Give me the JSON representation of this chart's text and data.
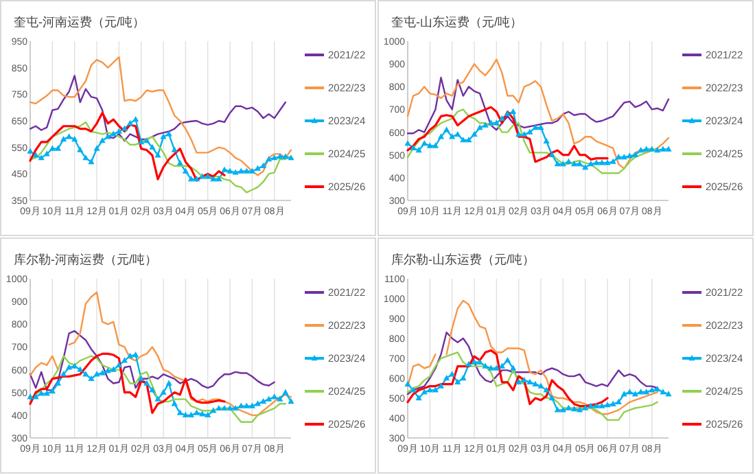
{
  "chart_data": [
    {
      "type": "line",
      "title": "奎屯-河南运费（元/吨）",
      "categories": [
        "09月",
        null,
        null,
        null,
        "10月",
        null,
        null,
        null,
        "11月",
        null,
        null,
        null,
        "12月",
        null,
        null,
        null,
        "01月",
        null,
        null,
        null,
        "02月",
        null,
        null,
        null,
        "03月",
        null,
        null,
        null,
        "04月",
        null,
        null,
        null,
        "05月",
        null,
        null,
        null,
        "06月",
        null,
        null,
        null,
        "07月",
        null,
        null,
        null,
        "08月",
        null,
        null,
        null
      ],
      "ylim": [
        350,
        950
      ],
      "yticks": [
        350,
        450,
        550,
        650,
        750,
        850,
        950
      ],
      "grid": "x",
      "legend": "right",
      "series": [
        {
          "name": "2021/22",
          "color": "#7030a0",
          "values": [
            620,
            630,
            615,
            625,
            690,
            695,
            730,
            760,
            820,
            720,
            770,
            740,
            735,
            690,
            590,
            585,
            600,
            575,
            600,
            590,
            580,
            580,
            590,
            600,
            605,
            610,
            620,
            640,
            645,
            648,
            650,
            640,
            635,
            640,
            650,
            645,
            680,
            705,
            705,
            695,
            700,
            685,
            660,
            675,
            660,
            690,
            720,
            null
          ]
        },
        {
          "name": "2022/23",
          "color": "#f79646",
          "values": [
            720,
            715,
            730,
            745,
            765,
            765,
            745,
            740,
            740,
            770,
            800,
            860,
            880,
            870,
            850,
            870,
            890,
            725,
            730,
            725,
            740,
            765,
            760,
            765,
            765,
            720,
            670,
            650,
            620,
            580,
            530,
            530,
            530,
            540,
            550,
            545,
            530,
            510,
            500,
            480,
            460,
            445,
            460,
            510,
            525,
            525,
            510,
            540
          ]
        },
        {
          "name": "2023/24",
          "color": "#00b0f0",
          "marker": "triangle",
          "values": [
            535,
            520,
            510,
            525,
            545,
            545,
            580,
            590,
            580,
            540,
            510,
            495,
            545,
            575,
            590,
            600,
            610,
            620,
            640,
            655,
            570,
            575,
            550,
            520,
            590,
            600,
            540,
            490,
            460,
            430,
            430,
            440,
            440,
            430,
            430,
            465,
            460,
            455,
            460,
            460,
            460,
            470,
            480,
            505,
            510,
            515,
            515,
            510
          ]
        },
        {
          "name": "2024/25",
          "color": "#92d050",
          "values": [
            505,
            510,
            530,
            560,
            590,
            600,
            610,
            620,
            625,
            630,
            645,
            610,
            605,
            600,
            605,
            600,
            590,
            580,
            560,
            560,
            570,
            580,
            590,
            560,
            530,
            490,
            480,
            480,
            480,
            475,
            460,
            440,
            440,
            440,
            440,
            430,
            425,
            405,
            400,
            380,
            390,
            400,
            420,
            450,
            455,
            505,
            505,
            null
          ]
        },
        {
          "name": "2025/26",
          "color": "#ff0000",
          "values": [
            500,
            540,
            570,
            570,
            590,
            610,
            630,
            630,
            630,
            620,
            620,
            610,
            640,
            680,
            640,
            655,
            630,
            610,
            635,
            630,
            545,
            540,
            520,
            430,
            475,
            505,
            525,
            545,
            495,
            470,
            425,
            440,
            450,
            440,
            460,
            445,
            null,
            null,
            null,
            null,
            null,
            null,
            null,
            null,
            null,
            null,
            null,
            null
          ]
        }
      ]
    },
    {
      "type": "line",
      "title": "奎屯-山东运费（元/吨）",
      "categories": [
        "09月",
        null,
        null,
        null,
        "10月",
        null,
        null,
        null,
        "11月",
        null,
        null,
        null,
        "12月",
        null,
        null,
        null,
        "01月",
        null,
        null,
        null,
        "02月",
        null,
        null,
        null,
        "03月",
        null,
        null,
        null,
        "04月",
        null,
        null,
        null,
        "05月",
        null,
        null,
        null,
        "06月",
        null,
        null,
        null,
        "07月",
        null,
        null,
        null,
        "08月",
        null,
        null,
        null
      ],
      "ylim": [
        300,
        1000
      ],
      "yticks": [
        300,
        400,
        500,
        600,
        700,
        800,
        900,
        1000
      ],
      "grid": "x",
      "legend": "right",
      "series": [
        {
          "name": "2021/22",
          "color": "#7030a0",
          "values": [
            595,
            595,
            610,
            600,
            650,
            700,
            840,
            740,
            700,
            830,
            760,
            800,
            780,
            770,
            700,
            630,
            610,
            640,
            670,
            640,
            630,
            620,
            625,
            630,
            635,
            640,
            640,
            650,
            680,
            690,
            675,
            680,
            680,
            660,
            645,
            650,
            660,
            670,
            700,
            730,
            735,
            710,
            720,
            735,
            700,
            705,
            695,
            745
          ]
        },
        {
          "name": "2022/23",
          "color": "#f79646",
          "values": [
            670,
            760,
            770,
            800,
            770,
            765,
            750,
            770,
            760,
            810,
            820,
            860,
            900,
            870,
            850,
            880,
            920,
            860,
            760,
            760,
            730,
            800,
            810,
            825,
            800,
            720,
            650,
            660,
            680,
            640,
            550,
            560,
            580,
            580,
            560,
            550,
            540,
            530,
            460,
            440,
            480,
            510,
            520,
            510,
            520,
            530,
            550,
            575
          ]
        },
        {
          "name": "2023/24",
          "color": "#00b0f0",
          "marker": "triangle",
          "values": [
            550,
            530,
            520,
            550,
            540,
            540,
            580,
            610,
            580,
            590,
            565,
            565,
            590,
            620,
            630,
            640,
            640,
            660,
            680,
            690,
            590,
            590,
            600,
            620,
            620,
            560,
            500,
            460,
            460,
            470,
            460,
            460,
            445,
            460,
            465,
            465,
            465,
            470,
            490,
            490,
            495,
            500,
            520,
            525,
            525,
            520,
            525,
            525
          ]
        },
        {
          "name": "2024/25",
          "color": "#92d050",
          "values": [
            490,
            530,
            560,
            590,
            595,
            620,
            640,
            650,
            660,
            690,
            700,
            670,
            660,
            640,
            640,
            630,
            640,
            600,
            600,
            630,
            640,
            560,
            510,
            510,
            510,
            510,
            500,
            480,
            460,
            460,
            470,
            475,
            465,
            460,
            440,
            420,
            420,
            420,
            420,
            440,
            470,
            490,
            500,
            510,
            520,
            530,
            null,
            null
          ]
        },
        {
          "name": "2025/26",
          "color": "#ff0000",
          "values": [
            520,
            540,
            570,
            580,
            610,
            630,
            670,
            675,
            670,
            630,
            650,
            670,
            680,
            690,
            700,
            710,
            690,
            640,
            690,
            660,
            580,
            580,
            570,
            470,
            480,
            490,
            510,
            520,
            500,
            500,
            540,
            500,
            500,
            480,
            485,
            485,
            485,
            null,
            null,
            null,
            null,
            null,
            null,
            null,
            null,
            null,
            null,
            null
          ]
        }
      ]
    },
    {
      "type": "line",
      "title": "库尔勒-河南运费（元/吨）",
      "categories": [
        "09月",
        null,
        null,
        null,
        "10月",
        null,
        null,
        null,
        "11月",
        null,
        null,
        null,
        "12月",
        null,
        null,
        null,
        "01月",
        null,
        null,
        null,
        "02月",
        null,
        null,
        null,
        "03月",
        null,
        null,
        null,
        "04月",
        null,
        null,
        null,
        "05月",
        null,
        null,
        null,
        "06月",
        null,
        null,
        null,
        "07月",
        null,
        null,
        null,
        "08月",
        null,
        null,
        null
      ],
      "ylim": [
        300,
        1000
      ],
      "yticks": [
        300,
        400,
        500,
        600,
        700,
        800,
        900,
        1000
      ],
      "grid": "x",
      "legend": "right",
      "series": [
        {
          "name": "2021/22",
          "color": "#7030a0",
          "values": [
            580,
            520,
            590,
            510,
            510,
            550,
            650,
            760,
            770,
            750,
            730,
            690,
            660,
            620,
            560,
            540,
            545,
            610,
            615,
            520,
            560,
            560,
            570,
            560,
            580,
            570,
            560,
            540,
            550,
            560,
            550,
            530,
            520,
            530,
            560,
            580,
            580,
            590,
            585,
            585,
            570,
            550,
            535,
            530,
            545,
            null,
            null,
            null
          ]
        },
        {
          "name": "2022/23",
          "color": "#f79646",
          "values": [
            575,
            610,
            630,
            620,
            660,
            600,
            null,
            710,
            720,
            760,
            890,
            920,
            940,
            810,
            800,
            810,
            710,
            700,
            650,
            640,
            660,
            670,
            700,
            660,
            600,
            590,
            570,
            560,
            550,
            470,
            460,
            470,
            460,
            470,
            470,
            460,
            450,
            430,
            420,
            410,
            400,
            400,
            420,
            440,
            460,
            480,
            490,
            480
          ]
        },
        {
          "name": "2023/24",
          "color": "#00b0f0",
          "marker": "triangle",
          "values": [
            480,
            480,
            495,
            495,
            505,
            540,
            580,
            610,
            615,
            600,
            580,
            560,
            580,
            585,
            595,
            600,
            620,
            640,
            660,
            665,
            560,
            540,
            510,
            470,
            500,
            540,
            450,
            410,
            400,
            400,
            410,
            405,
            400,
            420,
            430,
            430,
            430,
            430,
            440,
            440,
            440,
            450,
            460,
            470,
            480,
            470,
            500,
            460
          ]
        },
        {
          "name": "2024/25",
          "color": "#92d050",
          "values": [
            470,
            490,
            510,
            540,
            560,
            600,
            660,
            630,
            620,
            640,
            650,
            660,
            650,
            620,
            610,
            600,
            600,
            580,
            540,
            540,
            580,
            590,
            530,
            470,
            460,
            460,
            470,
            470,
            470,
            440,
            430,
            420,
            420,
            420,
            430,
            430,
            430,
            400,
            370,
            370,
            370,
            400,
            410,
            420,
            430,
            450,
            450,
            null
          ]
        },
        {
          "name": "2025/26",
          "color": "#ff0000",
          "values": [
            450,
            500,
            515,
            515,
            560,
            565,
            570,
            570,
            575,
            580,
            610,
            640,
            660,
            670,
            670,
            665,
            650,
            500,
            500,
            480,
            550,
            540,
            410,
            450,
            460,
            480,
            500,
            490,
            560,
            480,
            460,
            455,
            455,
            460,
            465,
            460,
            null,
            null,
            null,
            null,
            null,
            null,
            null,
            null,
            null,
            null,
            null,
            null
          ]
        }
      ]
    },
    {
      "type": "line",
      "title": "库尔勒-山东运费（元/吨）",
      "categories": [
        "09月",
        null,
        null,
        null,
        "10月",
        null,
        null,
        null,
        "11月",
        null,
        null,
        null,
        "12月",
        null,
        null,
        null,
        "01月",
        null,
        null,
        null,
        "02月",
        null,
        null,
        null,
        "03月",
        null,
        null,
        null,
        "04月",
        null,
        null,
        null,
        "05月",
        null,
        null,
        null,
        "06月",
        null,
        null,
        null,
        "07月",
        null,
        null,
        null,
        "08月",
        null,
        null,
        null
      ],
      "ylim": [
        300,
        1100
      ],
      "yticks": [
        300,
        400,
        500,
        600,
        700,
        800,
        900,
        1000,
        1100
      ],
      "grid": "x",
      "legend": "right",
      "series": [
        {
          "name": "2021/22",
          "color": "#7030a0",
          "values": [
            520,
            540,
            550,
            560,
            600,
            650,
            720,
            830,
            800,
            780,
            800,
            760,
            680,
            620,
            590,
            580,
            610,
            640,
            640,
            630,
            630,
            630,
            630,
            630,
            620,
            640,
            650,
            640,
            620,
            610,
            610,
            620,
            580,
            570,
            560,
            570,
            560,
            600,
            640,
            610,
            620,
            610,
            580,
            560,
            560,
            550,
            null,
            null
          ]
        },
        {
          "name": "2022/23",
          "color": "#f79646",
          "values": [
            560,
            660,
            670,
            650,
            660,
            720,
            null,
            720,
            850,
            950,
            990,
            970,
            910,
            860,
            850,
            760,
            730,
            730,
            750,
            750,
            750,
            740,
            630,
            620,
            640,
            600,
            510,
            500,
            500,
            490,
            480,
            480,
            470,
            450,
            430,
            420,
            420,
            430,
            440,
            460,
            480,
            490,
            500,
            510,
            520,
            530,
            null,
            null
          ]
        },
        {
          "name": "2023/24",
          "color": "#00b0f0",
          "marker": "triangle",
          "values": [
            570,
            540,
            500,
            530,
            540,
            540,
            560,
            600,
            620,
            580,
            600,
            670,
            680,
            680,
            660,
            650,
            650,
            660,
            690,
            650,
            580,
            590,
            580,
            570,
            560,
            540,
            500,
            440,
            440,
            450,
            445,
            440,
            450,
            460,
            460,
            460,
            465,
            470,
            480,
            520,
            530,
            520,
            530,
            530,
            540,
            545,
            530,
            520
          ]
        },
        {
          "name": "2024/25",
          "color": "#92d050",
          "values": [
            530,
            550,
            560,
            590,
            610,
            660,
            700,
            710,
            720,
            730,
            680,
            660,
            660,
            660,
            660,
            630,
            560,
            570,
            580,
            640,
            590,
            570,
            530,
            520,
            520,
            500,
            500,
            480,
            450,
            450,
            450,
            450,
            450,
            450,
            440,
            420,
            390,
            390,
            390,
            430,
            440,
            450,
            455,
            460,
            465,
            480,
            null,
            null
          ]
        },
        {
          "name": "2025/26",
          "color": "#ff0000",
          "values": [
            480,
            520,
            540,
            550,
            560,
            560,
            570,
            570,
            570,
            660,
            660,
            660,
            710,
            690,
            730,
            740,
            720,
            580,
            580,
            540,
            610,
            590,
            470,
            500,
            490,
            510,
            590,
            560,
            540,
            500,
            470,
            460,
            460,
            465,
            470,
            480,
            500,
            null,
            null,
            null,
            null,
            null,
            null,
            null,
            null,
            null,
            null,
            null
          ]
        }
      ]
    }
  ]
}
